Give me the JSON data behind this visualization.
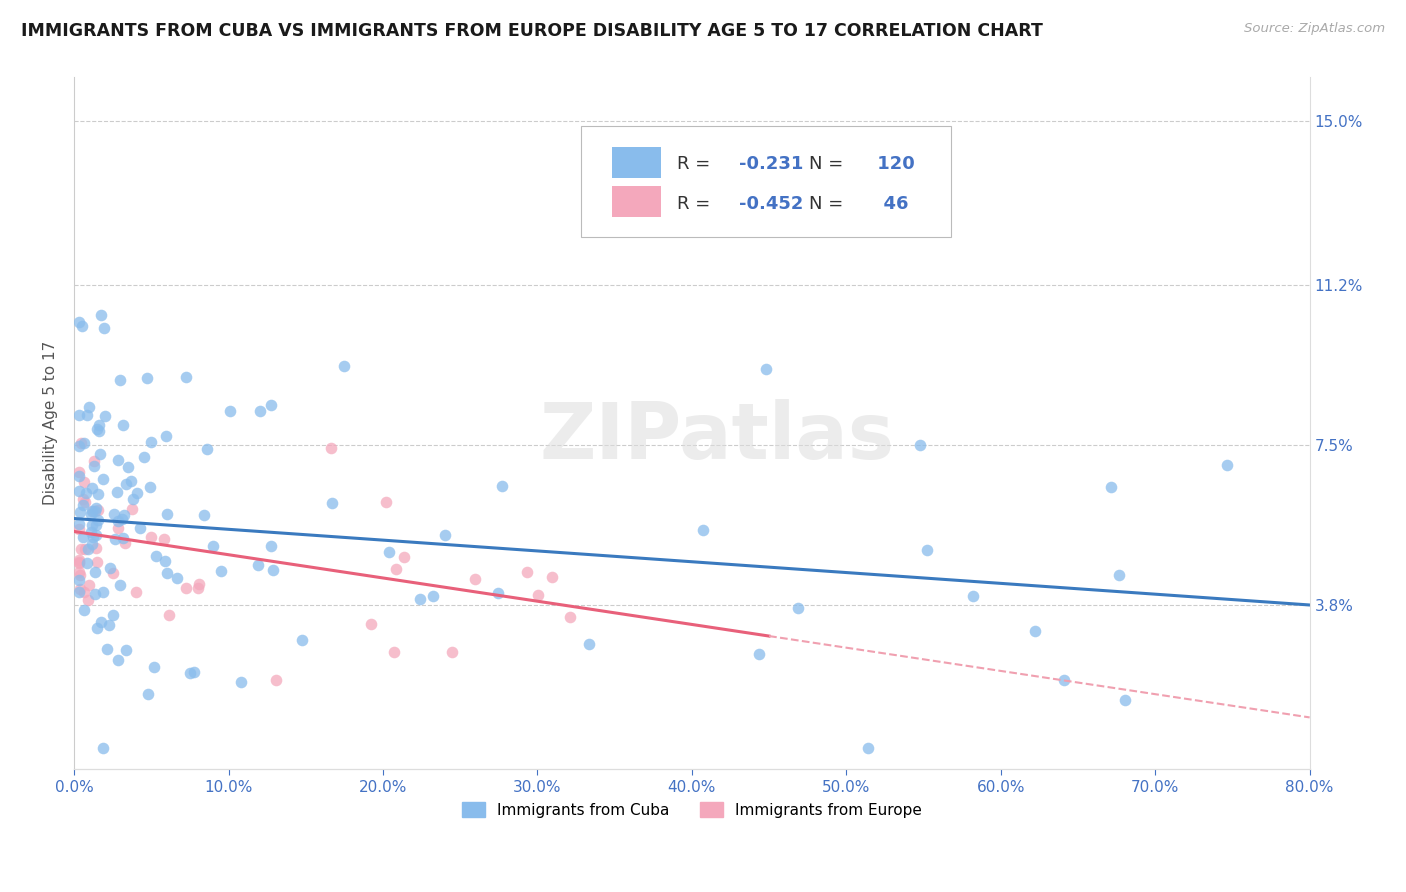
{
  "title": "IMMIGRANTS FROM CUBA VS IMMIGRANTS FROM EUROPE DISABILITY AGE 5 TO 17 CORRELATION CHART",
  "source": "Source: ZipAtlas.com",
  "ylabel": "Disability Age 5 to 17",
  "xlim": [
    0.0,
    80.0
  ],
  "ylim": [
    0.0,
    16.0
  ],
  "yticks": [
    3.8,
    7.5,
    11.2,
    15.0
  ],
  "xticks": [
    0.0,
    10.0,
    20.0,
    30.0,
    40.0,
    50.0,
    60.0,
    70.0,
    80.0
  ],
  "cuba_color": "#89bcec",
  "europe_color": "#f4a8bc",
  "cuba_line_color": "#3a7abf",
  "europe_line_solid_color": "#e8607a",
  "europe_line_dash_color": "#f0a0b0",
  "legend_r_cuba": "-0.231",
  "legend_n_cuba": "120",
  "legend_r_europe": "-0.452",
  "legend_n_europe": "46",
  "legend_label_cuba": "Immigrants from Cuba",
  "legend_label_europe": "Immigrants from Europe",
  "title_color": "#1a1a1a",
  "tick_label_color": "#4472c4",
  "watermark": "ZIPatlas",
  "cuba_trend_x0": 0.0,
  "cuba_trend_y0": 5.8,
  "cuba_trend_x1": 80.0,
  "cuba_trend_y1": 3.8,
  "europe_trend_x0": 0.0,
  "europe_trend_y0": 5.5,
  "europe_trend_x1": 80.0,
  "europe_trend_y1": 1.2,
  "europe_solid_end": 45.0
}
